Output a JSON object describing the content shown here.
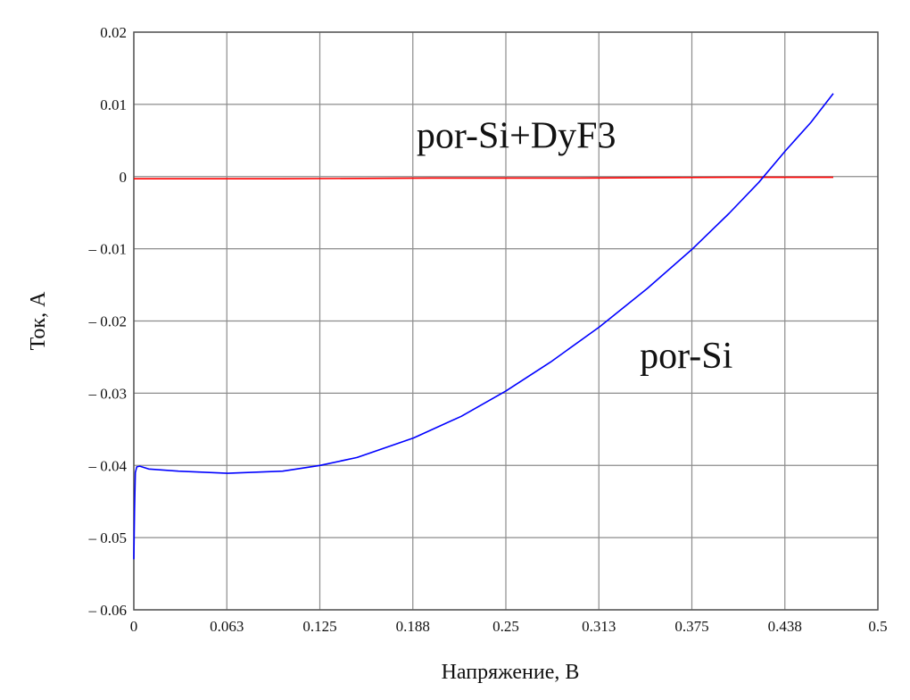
{
  "chart_data": {
    "type": "line",
    "title": "",
    "xlabel": "Напряжение, В",
    "ylabel": "Ток, А",
    "xlim": [
      0,
      0.5
    ],
    "ylim": [
      -0.06,
      0.02
    ],
    "grid": true,
    "legend": "none",
    "x_ticks": [
      "0",
      "0.063",
      "0.125",
      "0.188",
      "0.25",
      "0.313",
      "0.375",
      "0.438",
      "0.5"
    ],
    "x_tick_values": [
      0,
      0.0625,
      0.125,
      0.1875,
      0.25,
      0.3125,
      0.375,
      0.4375,
      0.5
    ],
    "y_ticks": [
      "0.02",
      "0.01",
      "0",
      "– 0.01",
      "– 0.02",
      "– 0.03",
      "– 0.04",
      "– 0.05",
      "– 0.06"
    ],
    "y_tick_values": [
      0.02,
      0.01,
      0,
      -0.01,
      -0.02,
      -0.03,
      -0.04,
      -0.05,
      -0.06
    ],
    "series": [
      {
        "name": "por-Si+DyF3",
        "color": "#ff0000",
        "x": [
          0,
          0.1,
          0.2,
          0.3,
          0.4,
          0.47
        ],
        "y": [
          -0.0003,
          -0.0003,
          -0.0002,
          -0.0002,
          -0.0001,
          -0.0001
        ]
      },
      {
        "name": "por-Si",
        "color": "#0000ff",
        "x": [
          0,
          0.0005,
          0.001,
          0.002,
          0.004,
          0.01,
          0.03,
          0.063,
          0.1,
          0.125,
          0.15,
          0.188,
          0.22,
          0.25,
          0.28,
          0.313,
          0.345,
          0.375,
          0.4,
          0.42,
          0.438,
          0.455,
          0.47
        ],
        "y": [
          -0.053,
          -0.046,
          -0.041,
          -0.0402,
          -0.0401,
          -0.0405,
          -0.0408,
          -0.0411,
          -0.0408,
          -0.04,
          -0.0389,
          -0.0362,
          -0.0332,
          -0.0297,
          -0.0257,
          -0.0208,
          -0.0155,
          -0.0101,
          -0.0051,
          -0.0008,
          0.0036,
          0.0075,
          0.0115
        ]
      }
    ],
    "annotations": [
      {
        "text": "por-Si+DyF3",
        "x": 0.19,
        "y": 0.004
      },
      {
        "text": "por-Si",
        "x": 0.34,
        "y": -0.0265
      }
    ]
  }
}
